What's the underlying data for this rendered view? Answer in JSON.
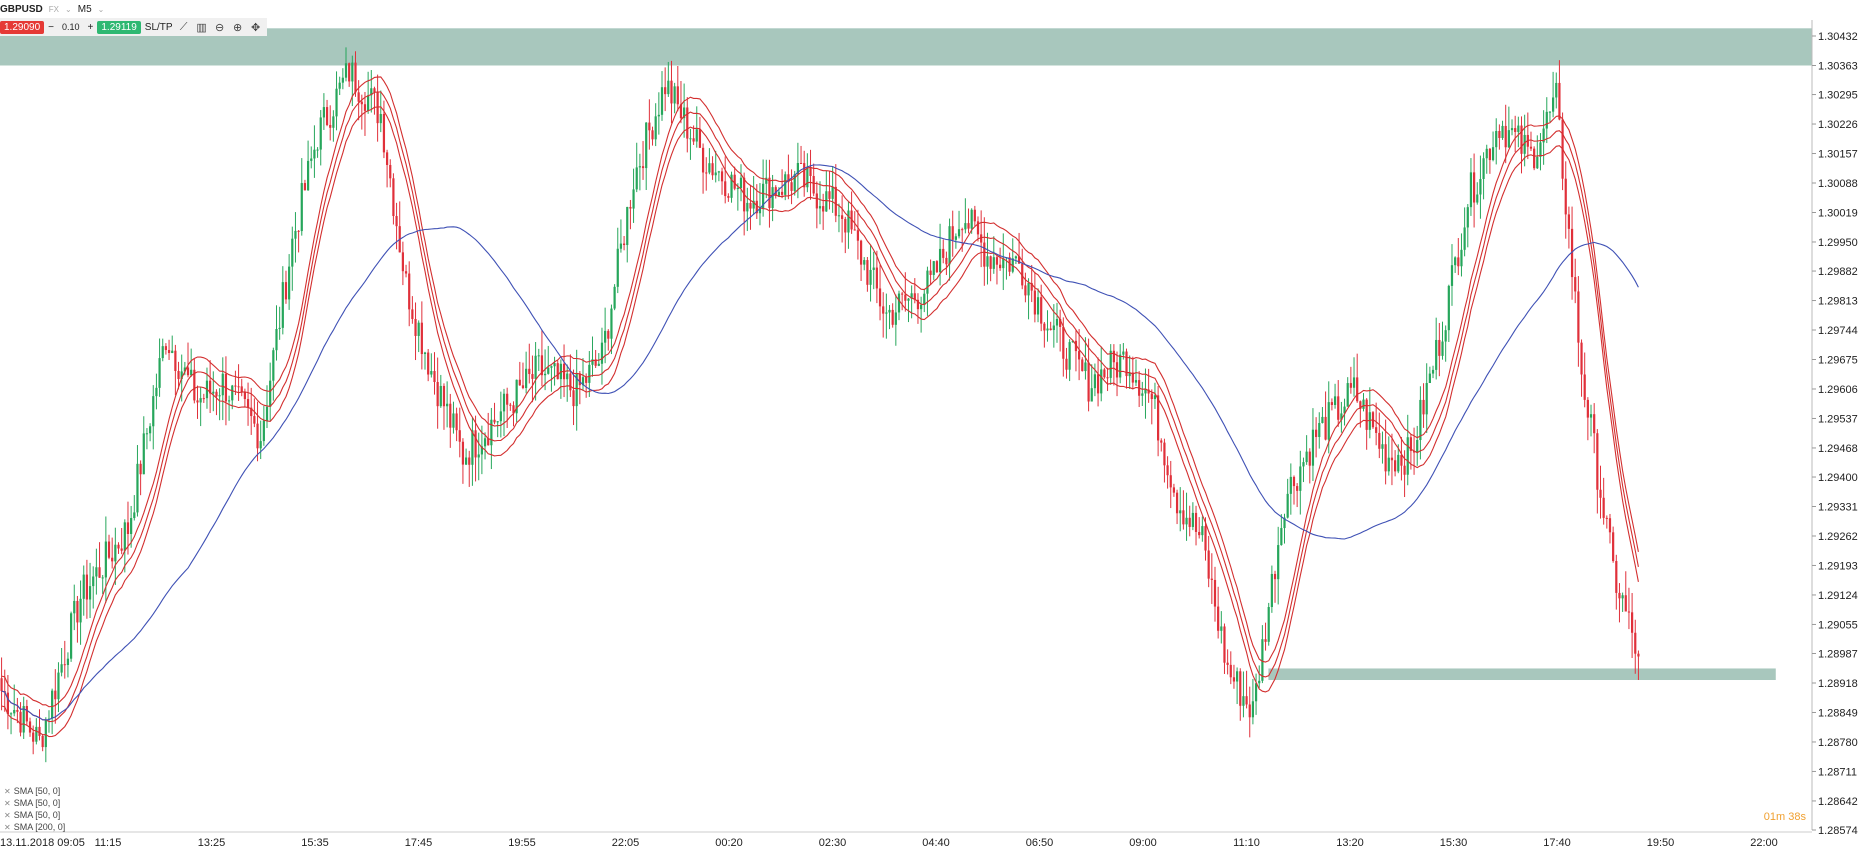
{
  "toolbar": {
    "symbol": "GBPUSD",
    "symbol_tag": "FX",
    "timeframe": "M5",
    "sell_price": "1.29090",
    "lot": "0.10",
    "buy_price": "1.29119",
    "sltp_label": "SL/TP"
  },
  "indicators": [
    "SMA [50, 0]",
    "SMA [50, 0]",
    "SMA [50, 0]",
    "SMA [200, 0]"
  ],
  "countdown": "01m 38s",
  "colors": {
    "up_candle": "#26a65b",
    "down_candle": "#e0303a",
    "sma50": "#d32f2f",
    "sma200": "#3f51b5",
    "zone": "#a8c7bd"
  },
  "chart_data": {
    "type": "candlestick",
    "title": "",
    "xlabel": "",
    "ylabel": "",
    "ylim": [
      1.28574,
      1.30432
    ],
    "y_ticks": [
      "1.30432",
      "1.30363",
      "1.30295",
      "1.30226",
      "1.30157",
      "1.30088",
      "1.30019",
      "1.29950",
      "1.29882",
      "1.29813",
      "1.29744",
      "1.29675",
      "1.29606",
      "1.29537",
      "1.29468",
      "1.29400",
      "1.29331",
      "1.29262",
      "1.29193",
      "1.29124",
      "1.29055",
      "1.28987",
      "1.28918",
      "1.28849",
      "1.28780",
      "1.28711",
      "1.28642",
      "1.28574"
    ],
    "x_ticks": [
      "13.11.2018 09:05",
      "11:15",
      "13:25",
      "15:35",
      "17:45",
      "19:55",
      "22:05",
      "00:20",
      "02:30",
      "04:40",
      "06:50",
      "09:00",
      "11:10",
      "13:20",
      "15:30",
      "17:40",
      "19:50",
      "22:00"
    ],
    "anchors": [
      [
        0,
        1.289
      ],
      [
        12,
        1.2878
      ],
      [
        25,
        1.2912
      ],
      [
        40,
        1.2928
      ],
      [
        52,
        1.2973
      ],
      [
        62,
        1.2958
      ],
      [
        70,
        1.2962
      ],
      [
        82,
        1.295
      ],
      [
        92,
        1.2995
      ],
      [
        100,
        1.302
      ],
      [
        110,
        1.3035
      ],
      [
        120,
        1.3025
      ],
      [
        128,
        1.2985
      ],
      [
        136,
        1.2965
      ],
      [
        146,
        1.2945
      ],
      [
        158,
        1.2955
      ],
      [
        170,
        1.2965
      ],
      [
        182,
        1.296
      ],
      [
        190,
        1.2968
      ],
      [
        200,
        1.301
      ],
      [
        210,
        1.3032
      ],
      [
        222,
        1.3015
      ],
      [
        236,
        1.3005
      ],
      [
        252,
        1.301
      ],
      [
        266,
        1.3002
      ],
      [
        280,
        1.2978
      ],
      [
        294,
        1.2985
      ],
      [
        304,
        1.3002
      ],
      [
        312,
        1.2992
      ],
      [
        322,
        1.299
      ],
      [
        332,
        1.2975
      ],
      [
        344,
        1.2962
      ],
      [
        356,
        1.2968
      ],
      [
        364,
        1.2958
      ],
      [
        372,
        1.2935
      ],
      [
        380,
        1.2925
      ],
      [
        388,
        1.2895
      ],
      [
        396,
        1.2885
      ],
      [
        406,
        1.2935
      ],
      [
        416,
        1.295
      ],
      [
        428,
        1.296
      ],
      [
        438,
        1.2945
      ],
      [
        446,
        1.2945
      ],
      [
        456,
        1.2975
      ],
      [
        464,
        1.3005
      ],
      [
        474,
        1.3023
      ],
      [
        484,
        1.3015
      ],
      [
        492,
        1.3028
      ],
      [
        500,
        1.2965
      ],
      [
        510,
        1.2918
      ],
      [
        518,
        1.2898
      ]
    ],
    "sma50_offsets": [
      0.00035,
      0,
      -0.00035
    ],
    "sma200_level_note": "",
    "zones": [
      {
        "from": 1.30363,
        "to": 1.3045,
        "x_start": 0.0,
        "x_end": 1.0
      },
      {
        "from": 1.28925,
        "to": 1.28952,
        "x_start": 0.7,
        "x_end": 0.98
      }
    ]
  }
}
